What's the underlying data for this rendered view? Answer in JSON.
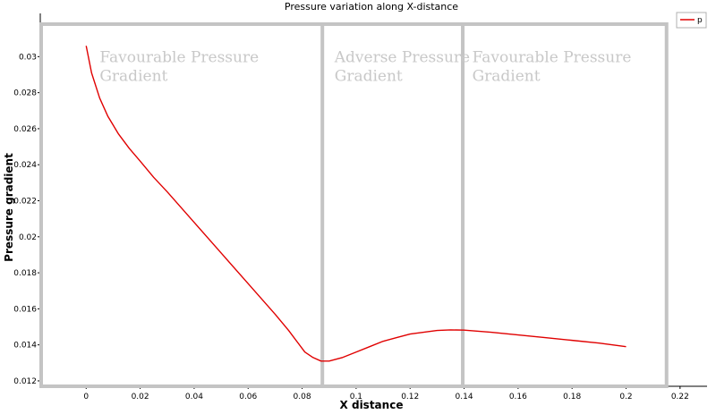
{
  "chart_data": {
    "type": "line",
    "title": "Pressure variation along X-distance",
    "xlabel": "X distance",
    "ylabel": "Pressure gradient",
    "xlim": [
      -0.017,
      0.23
    ],
    "ylim": [
      0.0117,
      0.0324
    ],
    "xticks": [
      0,
      0.02,
      0.04,
      0.06,
      0.08,
      0.1,
      0.12,
      0.14,
      0.16,
      0.18,
      0.2,
      0.22
    ],
    "xtick_labels": [
      "0",
      "0.02",
      "0.04",
      "0.06",
      "0.08",
      "0.1",
      "0.12",
      "0.14",
      "0.16",
      "0.18",
      "0.2",
      "0.22"
    ],
    "yticks": [
      0.012,
      0.014,
      0.016,
      0.018,
      0.02,
      0.022,
      0.024,
      0.026,
      0.028,
      0.03
    ],
    "ytick_labels": [
      "0.012",
      "0.014",
      "0.016",
      "0.018",
      "0.02",
      "0.022",
      "0.024",
      "0.026",
      "0.028",
      "0.03"
    ],
    "grid": false,
    "legend": {
      "position": "top-right"
    },
    "series": [
      {
        "name": "p",
        "color": "#e00000",
        "x": [
          0,
          0.002,
          0.005,
          0.008,
          0.012,
          0.016,
          0.02,
          0.025,
          0.03,
          0.04,
          0.05,
          0.06,
          0.07,
          0.075,
          0.078,
          0.081,
          0.084,
          0.087,
          0.09,
          0.095,
          0.1,
          0.105,
          0.11,
          0.115,
          0.12,
          0.125,
          0.13,
          0.135,
          0.14,
          0.15,
          0.16,
          0.17,
          0.18,
          0.19,
          0.2
        ],
        "y": [
          0.0306,
          0.0291,
          0.0277,
          0.0267,
          0.0257,
          0.0249,
          0.0242,
          0.0233,
          0.0225,
          0.0208,
          0.0191,
          0.0174,
          0.0157,
          0.0148,
          0.0142,
          0.0136,
          0.0133,
          0.0131,
          0.0131,
          0.0133,
          0.0136,
          0.0139,
          0.0142,
          0.0144,
          0.0146,
          0.0147,
          0.0148,
          0.01483,
          0.01482,
          0.0147,
          0.01455,
          0.0144,
          0.01425,
          0.0141,
          0.0139
        ]
      }
    ],
    "region_dividers_x": [
      0.0875,
      0.1395
    ],
    "region_frame_x": [
      -0.017,
      0.215
    ],
    "annotations": [
      {
        "lines": [
          "Favourable Pressure",
          "Gradient"
        ],
        "x": 0.005,
        "y": 0.0297
      },
      {
        "lines": [
          "Adverse Pressure",
          "Gradient"
        ],
        "x": 0.092,
        "y": 0.0297
      },
      {
        "lines": [
          "Favourable Pressure",
          "Gradient"
        ],
        "x": 0.143,
        "y": 0.0297
      }
    ]
  }
}
